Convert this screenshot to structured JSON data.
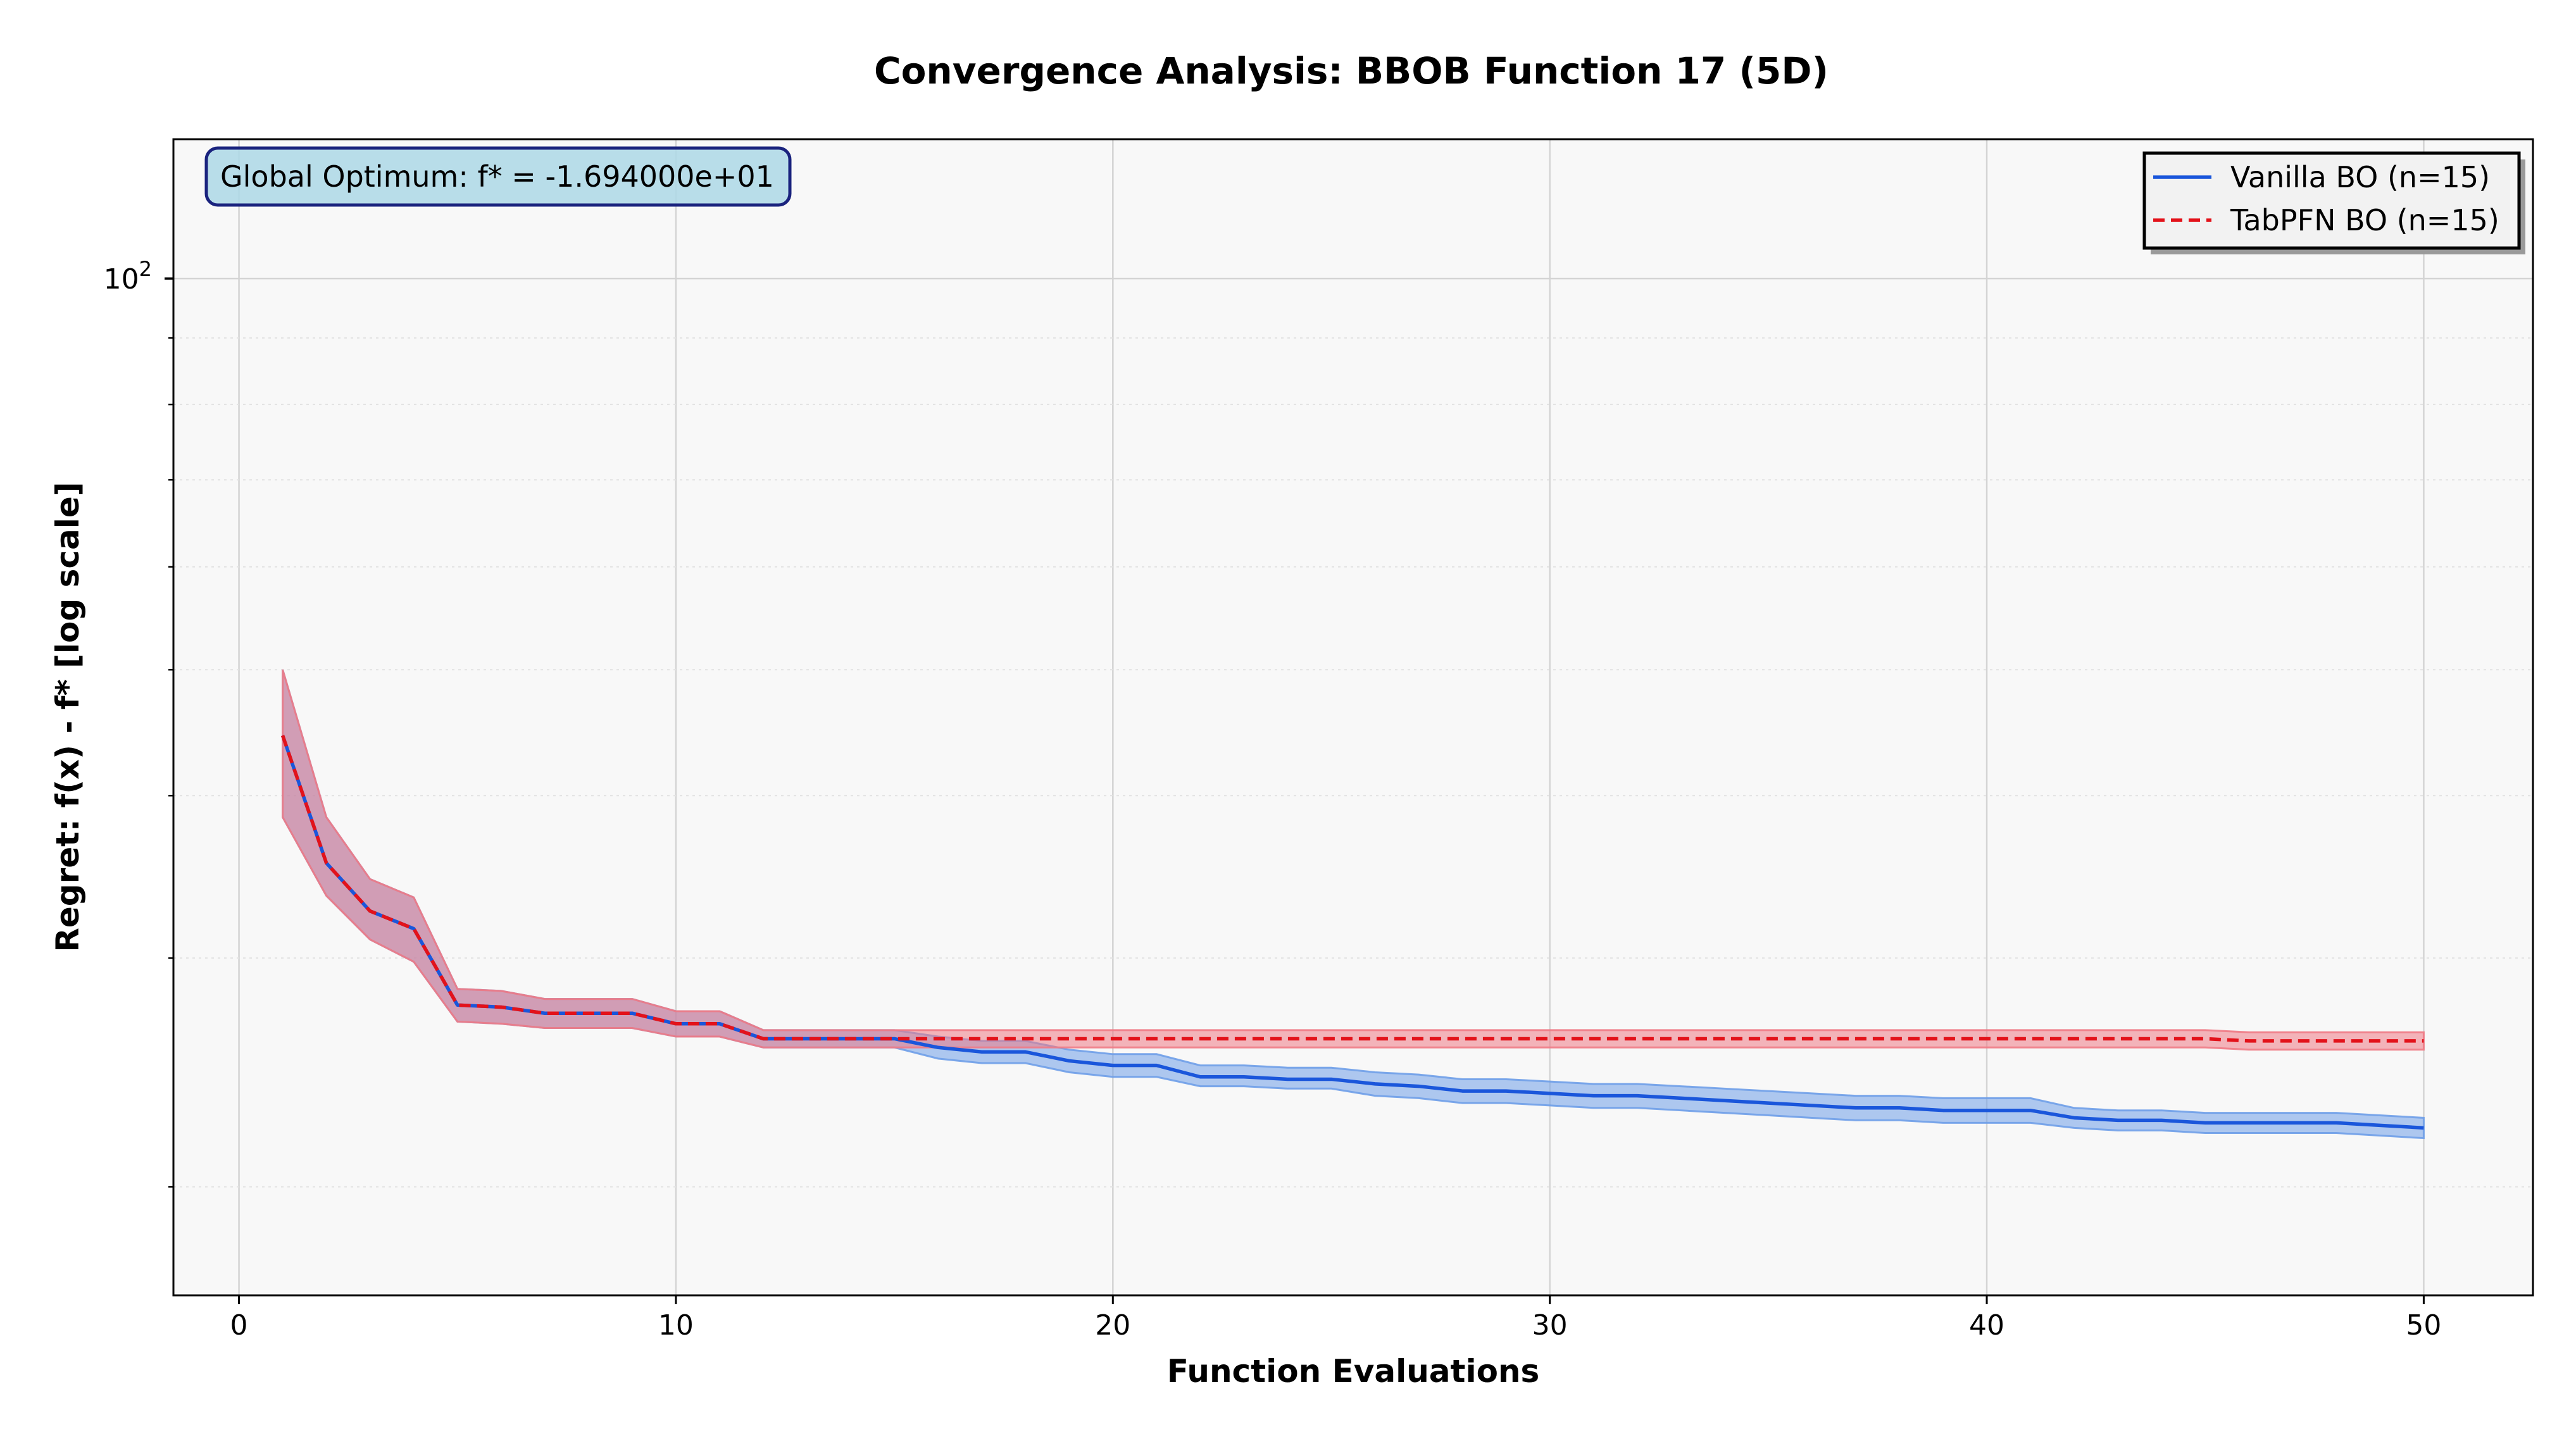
{
  "chart_data": {
    "type": "line",
    "title": "Convergence Analysis: BBOB Function 17 (5D)",
    "xlabel": "Function Evaluations",
    "ylabel": "Regret: f(x) - f* [log scale]",
    "yscale": "log",
    "xlim": [
      -1.5,
      52.5
    ],
    "ylim": [
      16.5,
      128
    ],
    "xticks": [
      0,
      10,
      20,
      30,
      40,
      50
    ],
    "yticks": [
      100
    ],
    "ytick_label": "10",
    "ytick_exponent": "2",
    "grid": true,
    "legend_position": "upper right",
    "annotation": "Global Optimum: f* = -1.694000e+01",
    "x": [
      1,
      2,
      3,
      4,
      5,
      6,
      7,
      8,
      9,
      10,
      11,
      12,
      13,
      14,
      15,
      16,
      17,
      18,
      19,
      20,
      21,
      22,
      23,
      24,
      25,
      26,
      27,
      28,
      29,
      30,
      31,
      32,
      33,
      34,
      35,
      36,
      37,
      38,
      39,
      40,
      41,
      42,
      43,
      44,
      45,
      46,
      47,
      48,
      49,
      50
    ],
    "series": [
      {
        "name": "Vanilla BO (n=15)",
        "color": "#1a56db",
        "line_style": "solid",
        "band_color": "#6f9ee8",
        "mean": [
          44.5,
          35.5,
          32.6,
          31.6,
          27.6,
          27.5,
          27.2,
          27.2,
          27.2,
          26.7,
          26.7,
          26.0,
          26.0,
          26.0,
          26.0,
          25.6,
          25.4,
          25.4,
          25.0,
          24.8,
          24.8,
          24.3,
          24.3,
          24.2,
          24.2,
          24.0,
          23.9,
          23.7,
          23.7,
          23.6,
          23.5,
          23.5,
          23.4,
          23.3,
          23.2,
          23.1,
          23.0,
          23.0,
          22.9,
          22.9,
          22.9,
          22.6,
          22.5,
          22.5,
          22.4,
          22.4,
          22.4,
          22.4,
          22.3,
          22.2
        ],
        "lower": [
          38.5,
          33.5,
          31.0,
          29.8,
          26.8,
          26.7,
          26.5,
          26.5,
          26.5,
          26.1,
          26.1,
          25.6,
          25.6,
          25.6,
          25.6,
          25.1,
          24.9,
          24.9,
          24.5,
          24.3,
          24.3,
          23.9,
          23.9,
          23.8,
          23.8,
          23.5,
          23.4,
          23.2,
          23.2,
          23.1,
          23.0,
          23.0,
          22.9,
          22.8,
          22.7,
          22.6,
          22.5,
          22.5,
          22.4,
          22.4,
          22.4,
          22.2,
          22.1,
          22.1,
          22.0,
          22.0,
          22.0,
          22.0,
          21.9,
          21.8
        ],
        "upper": [
          50.0,
          38.5,
          34.5,
          33.4,
          28.4,
          28.3,
          27.9,
          27.9,
          27.9,
          27.3,
          27.3,
          26.4,
          26.4,
          26.4,
          26.4,
          26.1,
          25.9,
          25.9,
          25.5,
          25.3,
          25.3,
          24.8,
          24.8,
          24.7,
          24.7,
          24.5,
          24.4,
          24.2,
          24.2,
          24.1,
          24.0,
          24.0,
          23.9,
          23.8,
          23.7,
          23.6,
          23.5,
          23.5,
          23.4,
          23.4,
          23.4,
          23.0,
          22.9,
          22.9,
          22.8,
          22.8,
          22.8,
          22.8,
          22.7,
          22.6
        ]
      },
      {
        "name": "TabPFN BO (n=15)",
        "color": "#e3121a",
        "line_style": "dashed",
        "band_color": "#ef7a85",
        "mean": [
          44.5,
          35.5,
          32.6,
          31.6,
          27.6,
          27.5,
          27.2,
          27.2,
          27.2,
          26.7,
          26.7,
          26.0,
          26.0,
          26.0,
          26.0,
          26.0,
          26.0,
          26.0,
          26.0,
          26.0,
          26.0,
          26.0,
          26.0,
          26.0,
          26.0,
          26.0,
          26.0,
          26.0,
          26.0,
          26.0,
          26.0,
          26.0,
          26.0,
          26.0,
          26.0,
          26.0,
          26.0,
          26.0,
          26.0,
          26.0,
          26.0,
          26.0,
          26.0,
          26.0,
          26.0,
          25.9,
          25.9,
          25.9,
          25.9,
          25.9
        ],
        "lower": [
          38.5,
          33.5,
          31.0,
          29.8,
          26.8,
          26.7,
          26.5,
          26.5,
          26.5,
          26.1,
          26.1,
          25.6,
          25.6,
          25.6,
          25.6,
          25.6,
          25.6,
          25.6,
          25.6,
          25.6,
          25.6,
          25.6,
          25.6,
          25.6,
          25.6,
          25.6,
          25.6,
          25.6,
          25.6,
          25.6,
          25.6,
          25.6,
          25.6,
          25.6,
          25.6,
          25.6,
          25.6,
          25.6,
          25.6,
          25.6,
          25.6,
          25.6,
          25.6,
          25.6,
          25.6,
          25.5,
          25.5,
          25.5,
          25.5,
          25.5
        ],
        "upper": [
          50.0,
          38.5,
          34.5,
          33.4,
          28.4,
          28.3,
          27.9,
          27.9,
          27.9,
          27.3,
          27.3,
          26.4,
          26.4,
          26.4,
          26.4,
          26.4,
          26.4,
          26.4,
          26.4,
          26.4,
          26.4,
          26.4,
          26.4,
          26.4,
          26.4,
          26.4,
          26.4,
          26.4,
          26.4,
          26.4,
          26.4,
          26.4,
          26.4,
          26.4,
          26.4,
          26.4,
          26.4,
          26.4,
          26.4,
          26.4,
          26.4,
          26.4,
          26.4,
          26.4,
          26.4,
          26.3,
          26.3,
          26.3,
          26.3,
          26.3
        ]
      }
    ]
  }
}
